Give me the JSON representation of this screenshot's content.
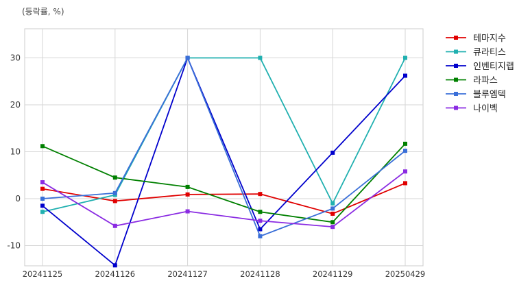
{
  "chart_data": {
    "type": "line",
    "ylabel": "(등락률, %)",
    "categories": [
      "20241125",
      "20241126",
      "20241127",
      "20241128",
      "20241129",
      "20250429"
    ],
    "yticks": [
      -10,
      0,
      10,
      20,
      30
    ],
    "ylim": [
      -14.3,
      36.2
    ],
    "grid": true,
    "legend_position": "right",
    "series": [
      {
        "name": "테마지수",
        "color": "#e00000",
        "values": [
          2.1,
          -0.5,
          0.9,
          1.0,
          -3.2,
          3.3
        ]
      },
      {
        "name": "큐라티스",
        "color": "#20b0b0",
        "values": [
          -2.8,
          0.8,
          30.0,
          30.0,
          -1.0,
          30.0
        ]
      },
      {
        "name": "인벤티지랩",
        "color": "#0000cc",
        "values": [
          -1.5,
          -14.2,
          30.0,
          -6.5,
          9.8,
          26.2
        ]
      },
      {
        "name": "라파스",
        "color": "#008000",
        "values": [
          11.2,
          4.5,
          2.5,
          -2.8,
          -5.0,
          11.7
        ]
      },
      {
        "name": "블루엠텍",
        "color": "#3a6fd8",
        "values": [
          0.0,
          1.2,
          30.0,
          -8.0,
          -2.1,
          10.2
        ]
      },
      {
        "name": "나이벡",
        "color": "#8a2be2",
        "values": [
          3.5,
          -5.8,
          -2.7,
          -4.7,
          -6.0,
          5.8
        ]
      }
    ]
  }
}
